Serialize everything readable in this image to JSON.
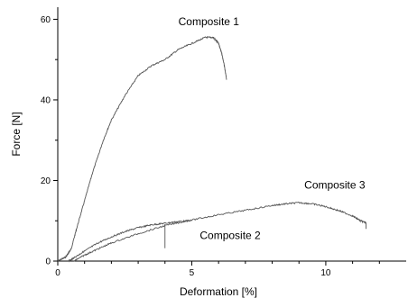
{
  "chart_data": {
    "type": "line",
    "title": "",
    "xlabel": "Deformation [%]",
    "ylabel": "Force [N]",
    "xlim": [
      0,
      13
    ],
    "ylim": [
      0,
      63
    ],
    "xticks": [
      0,
      5,
      10
    ],
    "yticks": [
      0,
      20,
      40,
      60
    ],
    "grid": false,
    "legend": "none",
    "series": [
      {
        "name": "Composite 1",
        "color": "#555555",
        "x": [
          0.0,
          0.3,
          0.4,
          0.5,
          0.7,
          1.0,
          1.3,
          1.7,
          2.0,
          2.5,
          3.0,
          3.5,
          4.0,
          4.5,
          5.0,
          5.5,
          5.8,
          6.0,
          6.1,
          6.2,
          6.3
        ],
        "y": [
          0.0,
          1.0,
          2.0,
          3.0,
          8.0,
          15.0,
          22.0,
          30.0,
          35.0,
          41.0,
          46.0,
          48.5,
          50.0,
          52.5,
          54.0,
          55.5,
          55.5,
          54.0,
          52.0,
          49.0,
          45.0
        ]
      },
      {
        "name": "Composite 2",
        "color": "#555555",
        "x": [
          0.4,
          0.6,
          1.0,
          1.5,
          2.0,
          2.5,
          3.0,
          3.5,
          4.0,
          4.5,
          5.0
        ],
        "y": [
          0.0,
          0.8,
          2.5,
          4.5,
          6.0,
          7.3,
          8.3,
          9.0,
          9.4,
          9.8,
          10.1
        ]
      },
      {
        "name": "Composite 3",
        "color": "#555555",
        "x": [
          0.6,
          1.0,
          1.5,
          2.0,
          3.0,
          4.0,
          5.0,
          6.0,
          7.0,
          8.0,
          8.5,
          9.0,
          9.5,
          10.0,
          10.5,
          11.0,
          11.3,
          11.5,
          11.5
        ],
        "y": [
          0.0,
          1.5,
          3.0,
          4.5,
          6.8,
          8.8,
          10.2,
          11.5,
          12.6,
          13.8,
          14.2,
          14.5,
          14.2,
          13.5,
          12.5,
          11.2,
          10.0,
          9.5,
          8.0
        ]
      }
    ],
    "annotations": [
      {
        "text": "Composite 1",
        "x": 4.5,
        "y": 58.5
      },
      {
        "text": "Composite 2",
        "x": 5.3,
        "y": 5.5
      },
      {
        "text": "Composite 3",
        "x": 9.2,
        "y": 18.0
      }
    ],
    "spike": {
      "x": 4.0,
      "y_top": 9.2,
      "y_bottom": 3.2
    }
  }
}
